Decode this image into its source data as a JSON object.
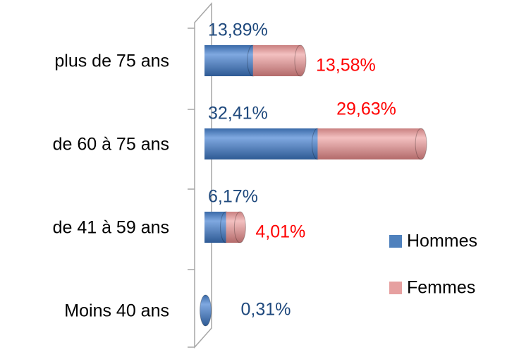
{
  "chart_data": {
    "type": "bar",
    "orientation": "horizontal",
    "stacked": true,
    "three_d": true,
    "categories": [
      "Moins 40 ans",
      "de 41 à 59 ans",
      "de 60 à 75 ans",
      "plus de 75 ans"
    ],
    "series": [
      {
        "name": "Hommes",
        "color": "#4f81bd",
        "label_color": "#1f497d",
        "values": [
          0.31,
          6.17,
          32.41,
          13.89
        ],
        "value_labels": [
          "0,31%",
          "6,17%",
          "32,41%",
          "13,89%"
        ]
      },
      {
        "name": "Femmes",
        "color": "#e6a0a0",
        "label_color": "#ff0000",
        "values": [
          null,
          4.01,
          29.63,
          13.58
        ],
        "value_labels": [
          null,
          "4,01%",
          "29,63%",
          "13,58%"
        ]
      }
    ],
    "legend": "right"
  }
}
